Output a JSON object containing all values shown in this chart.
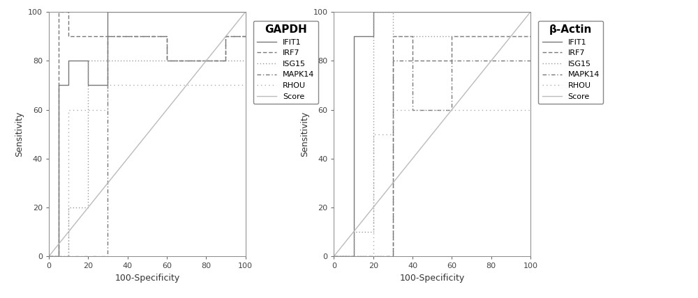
{
  "title_left": "GAPDH",
  "title_right": "β-Actin",
  "xlabel": "100-Specificity",
  "ylabel": "Sensitivity",
  "xlim": [
    0,
    100
  ],
  "ylim": [
    0,
    100
  ],
  "xticks": [
    0,
    20,
    40,
    60,
    80,
    100
  ],
  "yticks": [
    0,
    20,
    40,
    60,
    80,
    100
  ],
  "legend_labels": [
    "IFIT1",
    "IRF7",
    "ISG15",
    "MAPK14",
    "RHOU",
    "Score"
  ],
  "background_color": "#ffffff",
  "plot_bg_color": "#ffffff",
  "gapdh_curves": {
    "IFIT1": {
      "x": [
        0,
        5,
        5,
        10,
        10,
        20,
        20,
        30,
        30,
        100
      ],
      "y": [
        0,
        0,
        70,
        70,
        80,
        80,
        70,
        70,
        100,
        100
      ]
    },
    "IRF7": {
      "x": [
        0,
        5,
        5,
        10,
        10,
        30,
        30,
        60,
        60,
        90,
        90,
        100
      ],
      "y": [
        0,
        0,
        100,
        100,
        90,
        90,
        90,
        90,
        80,
        80,
        90,
        90
      ]
    },
    "ISG15": {
      "x": [
        0,
        10,
        10,
        20,
        20,
        100
      ],
      "y": [
        0,
        0,
        20,
        20,
        80,
        80
      ]
    },
    "MAPK14": {
      "x": [
        0,
        30,
        30,
        60,
        60,
        90,
        90,
        100
      ],
      "y": [
        0,
        0,
        90,
        90,
        80,
        80,
        90,
        90
      ]
    },
    "RHOU": {
      "x": [
        0,
        10,
        10,
        30,
        30,
        100
      ],
      "y": [
        0,
        0,
        60,
        60,
        70,
        70
      ]
    },
    "Score": {
      "x": [
        0,
        100
      ],
      "y": [
        0,
        100
      ]
    }
  },
  "beta_curves": {
    "IFIT1": {
      "x": [
        0,
        10,
        10,
        20,
        20,
        100
      ],
      "y": [
        0,
        0,
        90,
        90,
        100,
        100
      ]
    },
    "IRF7": {
      "x": [
        0,
        30,
        30,
        40,
        40,
        60,
        60,
        100
      ],
      "y": [
        0,
        0,
        90,
        90,
        80,
        80,
        90,
        90
      ]
    },
    "ISG15": {
      "x": [
        0,
        10,
        10,
        20,
        20,
        30,
        30,
        100
      ],
      "y": [
        0,
        0,
        10,
        10,
        100,
        100,
        90,
        90
      ]
    },
    "MAPK14": {
      "x": [
        0,
        30,
        30,
        40,
        40,
        60,
        60,
        100
      ],
      "y": [
        0,
        0,
        80,
        80,
        60,
        60,
        80,
        80
      ]
    },
    "RHOU": {
      "x": [
        0,
        20,
        20,
        30,
        30,
        100
      ],
      "y": [
        0,
        0,
        50,
        50,
        60,
        60
      ]
    },
    "Score": {
      "x": [
        0,
        100
      ],
      "y": [
        0,
        100
      ]
    }
  },
  "line_colors": [
    "#888888",
    "#888888",
    "#aaaaaa",
    "#888888",
    "#aaaaaa",
    "#bbbbbb"
  ],
  "line_widths": [
    1.0,
    1.0,
    1.0,
    1.0,
    1.0,
    1.0
  ],
  "title_fontsize": 11,
  "legend_fontsize": 8,
  "axis_fontsize": 9,
  "tick_fontsize": 8
}
